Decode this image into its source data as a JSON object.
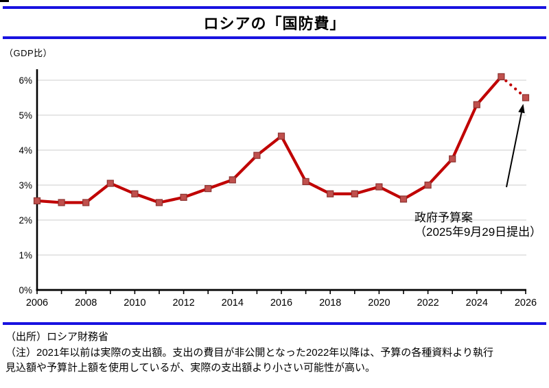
{
  "header": {
    "title": "ロシアの「国防費」"
  },
  "chart": {
    "unit_label": "（GDP比）",
    "annotation": {
      "line1": "政府予算案",
      "line2": "（2025年9月29日提出）"
    }
  },
  "chart_data": {
    "type": "line",
    "title": "ロシアの「国防費」",
    "ylabel": "（GDP比）",
    "x": [
      2006,
      2007,
      2008,
      2009,
      2010,
      2011,
      2012,
      2013,
      2014,
      2015,
      2016,
      2017,
      2018,
      2019,
      2020,
      2021,
      2022,
      2023,
      2024,
      2025,
      2026
    ],
    "values": [
      2.55,
      2.5,
      2.5,
      3.05,
      2.75,
      2.5,
      2.65,
      2.9,
      3.15,
      3.85,
      4.4,
      3.1,
      2.75,
      2.75,
      2.95,
      2.6,
      3.0,
      3.75,
      5.3,
      6.1,
      5.5
    ],
    "ylim": [
      0,
      6
    ],
    "yticks": [
      "0%",
      "1%",
      "2%",
      "3%",
      "4%",
      "5%",
      "6%"
    ],
    "xtick_labels": [
      "2006",
      "2008",
      "2010",
      "2012",
      "2014",
      "2016",
      "2018",
      "2020",
      "2022",
      "2024",
      "2026"
    ],
    "dotted_from_x": 2025,
    "grid": "horizontal",
    "legend": "none",
    "line_color": "#C00000",
    "marker": "square",
    "marker_fill": "#C0504D",
    "marker_stroke": "#8C3230",
    "gridline_color": "#D8D8D8",
    "axis_color": "#000000"
  },
  "footer": {
    "source": "（出所）ロシア財務省",
    "note_lines": [
      "（注）2021年以前は実際の支出額。支出の費目が非公開となった2022年以降は、予算の各種資料より執行",
      "見込額や予算計上額を使用しているが、実際の支出額より小さい可能性が高い。"
    ]
  },
  "colors": {
    "rule_blue": "#1812e0"
  }
}
